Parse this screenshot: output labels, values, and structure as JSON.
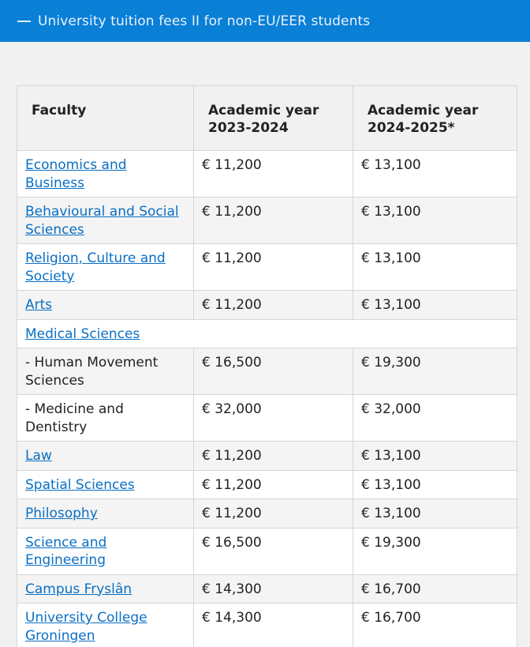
{
  "accordion": {
    "icon": "minus-icon",
    "title": "University tuition fees II for non-EU/EER students"
  },
  "table": {
    "headers": [
      "Faculty",
      "Academic year 2023-2024",
      "Academic year 2024-2025*"
    ],
    "rows": [
      {
        "faculty": "Economics and Business",
        "link": true,
        "fee_2023": "€ 11,200",
        "fee_2024": "€ 13,100"
      },
      {
        "faculty": "Behavioural and Social Sciences",
        "link": true,
        "fee_2023": "€ 11,200",
        "fee_2024": "€ 13,100"
      },
      {
        "faculty": "Religion, Culture and Society",
        "link": true,
        "fee_2023": "€ 11,200",
        "fee_2024": "€ 13,100"
      },
      {
        "faculty": "Arts",
        "link": true,
        "fee_2023": "€ 11,200",
        "fee_2024": "€ 13,100"
      },
      {
        "faculty": "Medical Sciences",
        "link": true,
        "span": true
      },
      {
        "faculty": "- Human Movement Sciences",
        "link": false,
        "fee_2023": "€ 16,500",
        "fee_2024": "€ 19,300"
      },
      {
        "faculty": "- Medicine and Dentistry",
        "link": false,
        "fee_2023": "€ 32,000",
        "fee_2024": "€ 32,000"
      },
      {
        "faculty": "Law",
        "link": true,
        "fee_2023": "€ 11,200",
        "fee_2024": "€ 13,100"
      },
      {
        "faculty": "Spatial Sciences",
        "link": true,
        "fee_2023": "€ 11,200",
        "fee_2024": "€ 13,100"
      },
      {
        "faculty": "Philosophy",
        "link": true,
        "fee_2023": "€ 11,200",
        "fee_2024": "€ 13,100"
      },
      {
        "faculty": "Science and Engineering",
        "link": true,
        "fee_2023": "€ 16,500",
        "fee_2024": "€ 19,300"
      },
      {
        "faculty": "Campus Fryslân",
        "link": true,
        "fee_2023": "€ 14,300",
        "fee_2024": "€ 16,700"
      },
      {
        "faculty": "University College Groningen",
        "link": true,
        "fee_2023": "€ 14,300",
        "fee_2024": "€ 16,700"
      }
    ]
  },
  "colors": {
    "header_bar": "#0a7fd6",
    "link": "#0a6fc4",
    "page_background": "#f1f1f1"
  }
}
